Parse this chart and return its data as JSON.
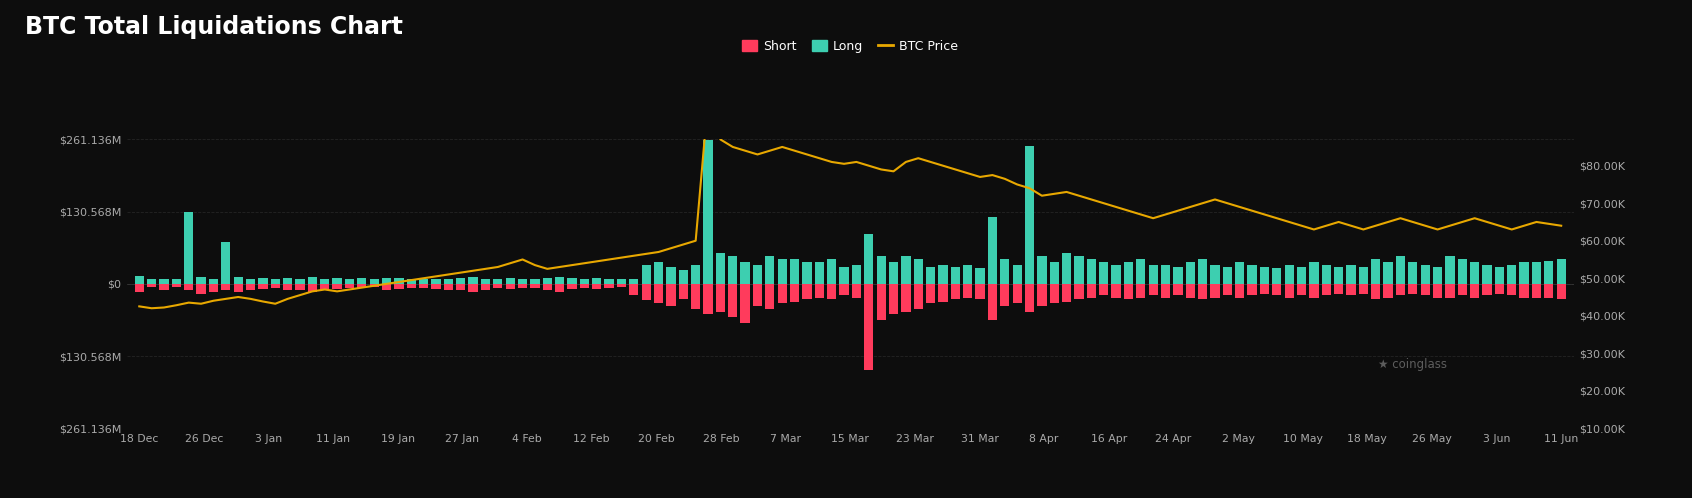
{
  "title": "BTC Total Liquidations Chart",
  "background_color": "#0d0d0d",
  "plot_bg_color": "#0d0d0d",
  "grid_color": "#2a2a2a",
  "title_color": "#ffffff",
  "title_fontsize": 17,
  "short_color": "#ff3b5c",
  "long_color": "#3dcfb0",
  "price_color": "#e8a800",
  "ylim_left": [
    -261.136,
    261.136
  ],
  "ylim_right": [
    10000,
    87000
  ],
  "left_yticks": [
    261.136,
    130.568,
    0,
    -130.568,
    -261.136
  ],
  "left_yticklabels": [
    "$261.136M",
    "$130.568M",
    "$0",
    "$130.568M",
    "$261.136M"
  ],
  "right_yticks": [
    10000,
    20000,
    30000,
    40000,
    50000,
    60000,
    70000,
    80000
  ],
  "right_yticklabels": [
    "$10.00K",
    "$20.00K",
    "$30.00K",
    "$40.00K",
    "$50.00K",
    "$60.00K",
    "$70.00K",
    "$80.00K"
  ],
  "xtick_labels": [
    "18 Dec",
    "26 Dec",
    "3 Jan",
    "11 Jan",
    "19 Jan",
    "27 Jan",
    "4 Feb",
    "12 Feb",
    "20 Feb",
    "28 Feb",
    "7 Mar",
    "15 Mar",
    "23 Mar",
    "31 Mar",
    "8 Apr",
    "16 Apr",
    "24 Apr",
    "2 May",
    "10 May",
    "18 May",
    "26 May",
    "3 Jun",
    "11 Jun"
  ],
  "n_bars": 116,
  "long_values": [
    15,
    9,
    8,
    8,
    130,
    12,
    8,
    75,
    12,
    8,
    10,
    8,
    10,
    8,
    12,
    8,
    10,
    8,
    10,
    8,
    10,
    10,
    8,
    8,
    8,
    8,
    10,
    12,
    8,
    8,
    10,
    8,
    8,
    10,
    12,
    10,
    8,
    10,
    8,
    8,
    8,
    35,
    40,
    30,
    25,
    35,
    261,
    55,
    50,
    40,
    35,
    50,
    45,
    45,
    40,
    40,
    45,
    30,
    35,
    90,
    50,
    40,
    50,
    45,
    30,
    35,
    30,
    35,
    28,
    120,
    45,
    35,
    250,
    50,
    40,
    55,
    50,
    45,
    40,
    35,
    40,
    45,
    35,
    35,
    30,
    40,
    45,
    35,
    30,
    40,
    35,
    30,
    28,
    35,
    30,
    40,
    35,
    30,
    35,
    30,
    45,
    40,
    50,
    40,
    35,
    30,
    50,
    45,
    40,
    35,
    30,
    35,
    40,
    40,
    42,
    45
  ],
  "short_values": [
    -15,
    -6,
    -12,
    -5,
    -12,
    -18,
    -15,
    -12,
    -15,
    -12,
    -10,
    -8,
    -12,
    -12,
    -15,
    -12,
    -10,
    -8,
    -8,
    -6,
    -12,
    -10,
    -8,
    -8,
    -10,
    -12,
    -12,
    -15,
    -12,
    -8,
    -10,
    -8,
    -8,
    -12,
    -14,
    -10,
    -8,
    -10,
    -8,
    -6,
    -20,
    -30,
    -35,
    -40,
    -28,
    -45,
    -55,
    -50,
    -60,
    -70,
    -40,
    -45,
    -35,
    -32,
    -28,
    -25,
    -28,
    -20,
    -25,
    -155,
    -65,
    -55,
    -50,
    -45,
    -35,
    -32,
    -28,
    -25,
    -28,
    -65,
    -40,
    -35,
    -50,
    -40,
    -35,
    -32,
    -28,
    -25,
    -20,
    -25,
    -28,
    -25,
    -20,
    -25,
    -20,
    -25,
    -28,
    -25,
    -20,
    -25,
    -20,
    -18,
    -20,
    -25,
    -20,
    -25,
    -20,
    -18,
    -20,
    -18,
    -28,
    -25,
    -20,
    -18,
    -20,
    -25,
    -25,
    -20,
    -25,
    -20,
    -18,
    -20,
    -25,
    -25,
    -26,
    -28
  ],
  "btc_price": [
    42500,
    42000,
    42200,
    42800,
    43500,
    43200,
    44000,
    44500,
    45000,
    44500,
    43800,
    43200,
    44500,
    45500,
    46500,
    47000,
    46500,
    47000,
    47500,
    48000,
    48500,
    49000,
    49500,
    50000,
    50500,
    51000,
    51500,
    52000,
    52500,
    53000,
    54000,
    55000,
    53500,
    52500,
    53000,
    53500,
    54000,
    54500,
    55000,
    55500,
    56000,
    56500,
    57000,
    58000,
    59000,
    60000,
    97500,
    87000,
    85000,
    84000,
    83000,
    84000,
    85000,
    84000,
    83000,
    82000,
    81000,
    80500,
    81000,
    80000,
    79000,
    78500,
    81000,
    82000,
    81000,
    80000,
    79000,
    78000,
    77000,
    77500,
    76500,
    75000,
    74000,
    72000,
    72500,
    73000,
    72000,
    71000,
    70000,
    69000,
    68000,
    67000,
    66000,
    67000,
    68000,
    69000,
    70000,
    71000,
    70000,
    69000,
    68000,
    67000,
    66000,
    65000,
    64000,
    63000,
    64000,
    65000,
    64000,
    63000,
    64000,
    65000,
    66000,
    65000,
    64000,
    63000,
    64000,
    65000,
    66000,
    65000,
    64000,
    63000,
    64000,
    65000,
    64500,
    64000
  ]
}
